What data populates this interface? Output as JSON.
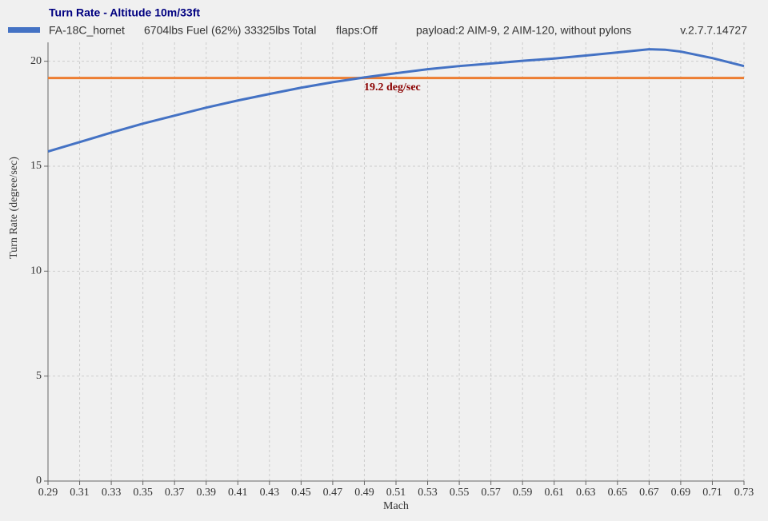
{
  "chart_data": {
    "type": "line",
    "title": "Turn Rate - Altitude 10m/33ft",
    "info": [
      "6704lbs Fuel (62%) 33325lbs Total",
      "flaps:Off",
      "payload:2 AIM-9, 2 AIM-120, without pylons",
      "v.2.7.7.14727"
    ],
    "x_label": "Mach",
    "y_label": "Turn Rate (degree/sec)",
    "x": [
      0.29,
      0.31,
      0.33,
      0.35,
      0.37,
      0.39,
      0.41,
      0.43,
      0.45,
      0.47,
      0.49,
      0.51,
      0.53,
      0.55,
      0.57,
      0.59,
      0.61,
      0.63,
      0.65,
      0.67,
      0.68,
      0.69,
      0.71,
      0.73
    ],
    "series": [
      {
        "name": "FA-18C_hornet",
        "color": "#4472c4",
        "values": [
          15.7,
          16.15,
          16.6,
          17.03,
          17.41,
          17.79,
          18.13,
          18.44,
          18.74,
          19.0,
          19.23,
          19.43,
          19.62,
          19.77,
          19.89,
          20.02,
          20.13,
          20.27,
          20.42,
          20.57,
          20.55,
          20.46,
          20.15,
          19.77
        ]
      }
    ],
    "reference": {
      "value": 19.2,
      "label": "19.2 deg/sec",
      "color": "#ed7d31",
      "label_color": "#8b0000"
    },
    "xlim": [
      0.29,
      0.73
    ],
    "xticks": [
      0.29,
      0.31,
      0.33,
      0.35,
      0.37,
      0.39,
      0.41,
      0.43,
      0.45,
      0.47,
      0.49,
      0.51,
      0.53,
      0.55,
      0.57,
      0.59,
      0.61,
      0.63,
      0.65,
      0.67,
      0.69,
      0.71,
      0.73
    ],
    "ylim": [
      0,
      20.9
    ],
    "yticks": [
      0,
      5,
      10,
      15,
      20
    ],
    "grid": true
  }
}
